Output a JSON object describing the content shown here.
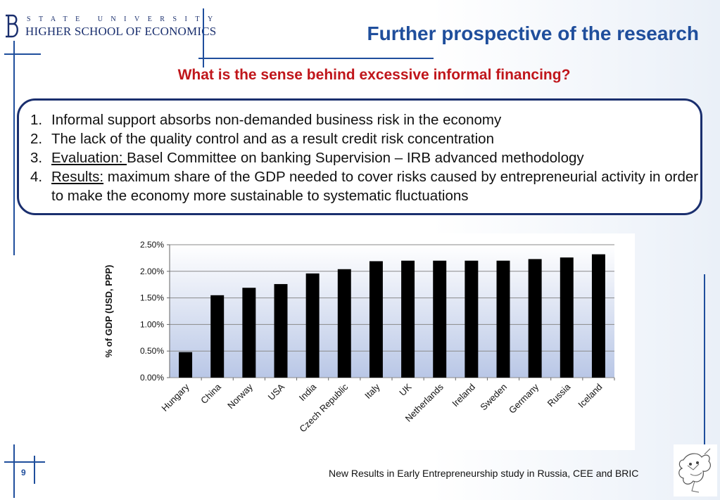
{
  "header": {
    "logo_line1": "STATE UNIVERSITY",
    "logo_line2": "HIGHER SCHOOL OF ECONOMICS",
    "title": "Further prospective of the research"
  },
  "subtitle": "What is the sense behind excessive informal financing?",
  "points": [
    {
      "num": "1.",
      "label": "",
      "text": "Informal support absorbs non-demanded business risk in the economy"
    },
    {
      "num": "2.",
      "label": "",
      "text": "The lack of the quality control and as a result credit risk concentration"
    },
    {
      "num": "3.",
      "label": "Evaluation: ",
      "text": "Basel Committee on banking Supervision – IRB advanced methodology"
    },
    {
      "num": "4.",
      "label": "Results:",
      "text": " maximum share of the GDP needed to cover risks caused by entrepreneurial activity in order to make the economy more sustainable to systematic fluctuations"
    }
  ],
  "chart_data": {
    "type": "bar",
    "categories": [
      "Hungary",
      "China",
      "Norway",
      "USA",
      "India",
      "Czech Republic",
      "Italy",
      "UK",
      "Netherlands",
      "Ireland",
      "Sweden",
      "Germany",
      "Russia",
      "Iceland"
    ],
    "values": [
      0.0048,
      0.0155,
      0.0169,
      0.0176,
      0.0196,
      0.0204,
      0.0219,
      0.022,
      0.022,
      0.022,
      0.022,
      0.0223,
      0.0226,
      0.0232
    ],
    "ylabel": "% of GDP (USD, PPP)",
    "ylim": [
      0,
      0.025
    ],
    "yticks": [
      "0.00%",
      "0.50%",
      "1.00%",
      "1.50%",
      "2.00%",
      "2.50%"
    ],
    "grid": true,
    "bar_color": "#000000",
    "plot_gradient": [
      "#ffffff",
      "#b9c7e6"
    ]
  },
  "footer": {
    "page_number": "9",
    "text": "New Results in Early Entrepreneurship study in Russia, CEE and BRIC"
  }
}
